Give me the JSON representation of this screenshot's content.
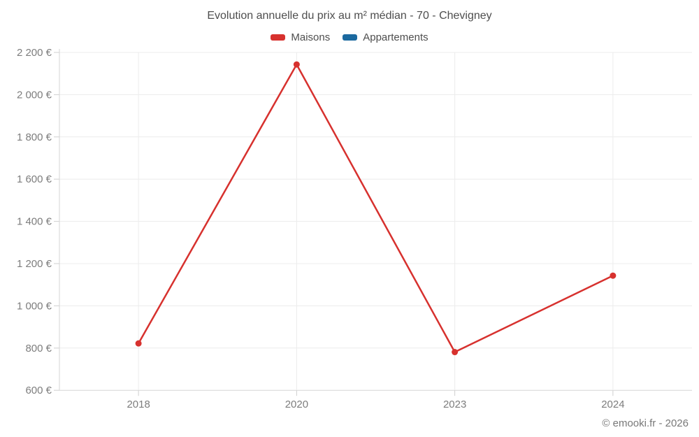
{
  "footer": {
    "copyright": "© emooki.fr - 2026"
  },
  "chart_data": {
    "type": "line",
    "title": "Evolution annuelle du prix au m² médian - 70 - Chevigney",
    "categories": [
      "2018",
      "2020",
      "2023",
      "2024"
    ],
    "series": [
      {
        "name": "Maisons",
        "color": "#d7312e",
        "values": [
          822,
          2143,
          781,
          1143
        ]
      },
      {
        "name": "Appartements",
        "color": "#1b699f",
        "values": []
      }
    ],
    "ylim": [
      600,
      2200
    ],
    "ytick_step": 200,
    "ytick_labels": [
      "600 €",
      "800 €",
      "1 000 €",
      "1 200 €",
      "1 400 €",
      "1 600 €",
      "1 800 €",
      "2 000 €",
      "2 200 €"
    ],
    "grid": true,
    "legend_position": "top",
    "colors": {
      "grid_line": "#ececec",
      "axis_line": "#d6d6d6",
      "tick_mark": "#cfcfcf",
      "axis_label": "#7d7d7d"
    }
  }
}
